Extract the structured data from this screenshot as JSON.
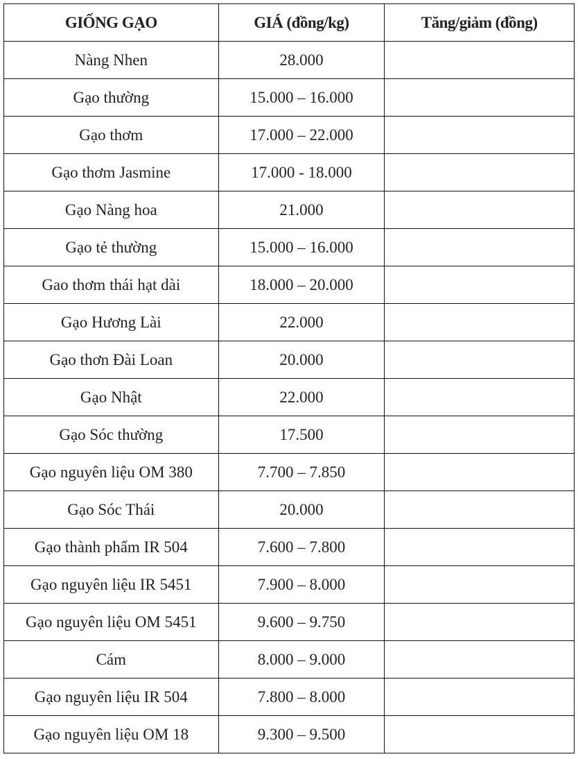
{
  "table": {
    "headers": [
      "GIỐNG GẠO",
      "GIÁ (đồng/kg)",
      "Tăng/giảm (đồng)"
    ],
    "rows": [
      [
        "Nàng Nhen",
        "28.000",
        ""
      ],
      [
        "Gạo thường",
        "15.000 – 16.000",
        ""
      ],
      [
        "Gạo thơm",
        "17.000 – 22.000",
        ""
      ],
      [
        "Gạo thơm Jasmine",
        "17.000 - 18.000",
        ""
      ],
      [
        "Gạo Nàng hoa",
        "21.000",
        ""
      ],
      [
        "Gạo tẻ thường",
        "15.000 – 16.000",
        ""
      ],
      [
        "Gao thơm thái hạt dài",
        "18.000 – 20.000",
        ""
      ],
      [
        "Gạo Hương Lài",
        "22.000",
        ""
      ],
      [
        "Gạo thơn Đài Loan",
        "20.000",
        ""
      ],
      [
        "Gạo Nhật",
        "22.000",
        ""
      ],
      [
        "Gạo Sóc thường",
        "17.500",
        ""
      ],
      [
        "Gạo nguyên liệu OM 380",
        "7.700 – 7.850",
        ""
      ],
      [
        "Gạo Sóc Thái",
        "20.000",
        ""
      ],
      [
        "Gạo thành phẩm IR 504",
        "7.600 – 7.800",
        ""
      ],
      [
        "Gạo nguyên liệu IR 5451",
        "7.900 – 8.000",
        ""
      ],
      [
        "Gạo nguyên liệu OM 5451",
        "9.600 – 9.750",
        ""
      ],
      [
        "Cám",
        "8.000 – 9.000",
        ""
      ],
      [
        "Gạo nguyên liệu IR 504",
        "7.800 – 8.000",
        ""
      ],
      [
        "Gạo nguyên liệu OM 18",
        "9.300 – 9.500",
        ""
      ]
    ]
  }
}
